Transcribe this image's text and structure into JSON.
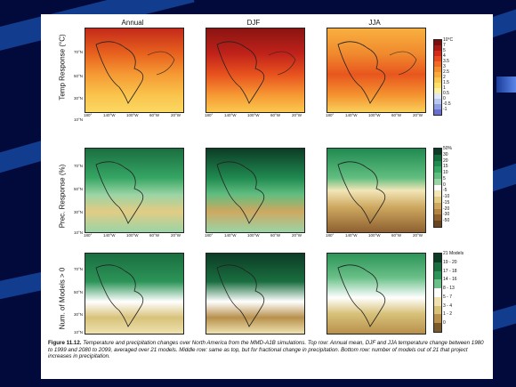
{
  "figure": {
    "col_titles": [
      "Annual",
      "DJF",
      "JJA"
    ],
    "row_labels": [
      "Temp Response (°C)",
      "Prec. Response (%)",
      "Num. of Models > 0"
    ],
    "lat_labels": [
      "70°N",
      "50°N",
      "30°N",
      "10°N"
    ],
    "lon_labels": [
      "180°",
      "140°W",
      "100°W",
      "60°W",
      "20°W"
    ],
    "colorbars": [
      {
        "labels": [
          "10°C",
          "7",
          "5",
          "4",
          "3.5",
          "3",
          "2.5",
          "2",
          "1.5",
          "1",
          "0.5",
          "0",
          "-0.5",
          "-1"
        ],
        "colors": [
          "#7a0f10",
          "#a81a16",
          "#d42a1c",
          "#e84a20",
          "#f06a26",
          "#f48c30",
          "#f8aa3c",
          "#fac850",
          "#fce06a",
          "#fdf0a0",
          "#dfe8f4",
          "#b8c8ee",
          "#8e9ee0",
          "#6a6ed0"
        ]
      },
      {
        "labels": [
          "50%",
          "30",
          "20",
          "15",
          "10",
          "5",
          "0",
          "-5",
          "-10",
          "-15",
          "-20",
          "-30",
          "-50"
        ],
        "colors": [
          "#0c3c26",
          "#156a3c",
          "#208a50",
          "#36a664",
          "#62be80",
          "#9ad4a6",
          "#ffffff",
          "#f2e6b8",
          "#e2cc84",
          "#cea860",
          "#b48444",
          "#8e6030",
          "#6a4620"
        ]
      },
      {
        "labels": [
          "21 Models",
          "19 - 20",
          "17 - 18",
          "14 - 16",
          "8 - 13",
          "5 - 7",
          "3 - 4",
          "1 - 2",
          "0"
        ],
        "colors": [
          "#0c3c26",
          "#1a6e40",
          "#2c9458",
          "#6ac088",
          "#ffffff",
          "#efe2b0",
          "#d8c27a",
          "#b8904c",
          "#7a5a2a"
        ]
      }
    ],
    "caption_label": "Figure 11.12.",
    "caption_text": "Temperature and precipitation changes over North America from the MMD-A1B simulations. Top row: Annual mean, DJF and JJA temperature change between 1980 to 1999 and 2080 to 2099, averaged over 21 models. Middle row: same as top, but for fractional change in precipitation. Bottom row: number of models out of 21 that project increases in precipitation."
  }
}
